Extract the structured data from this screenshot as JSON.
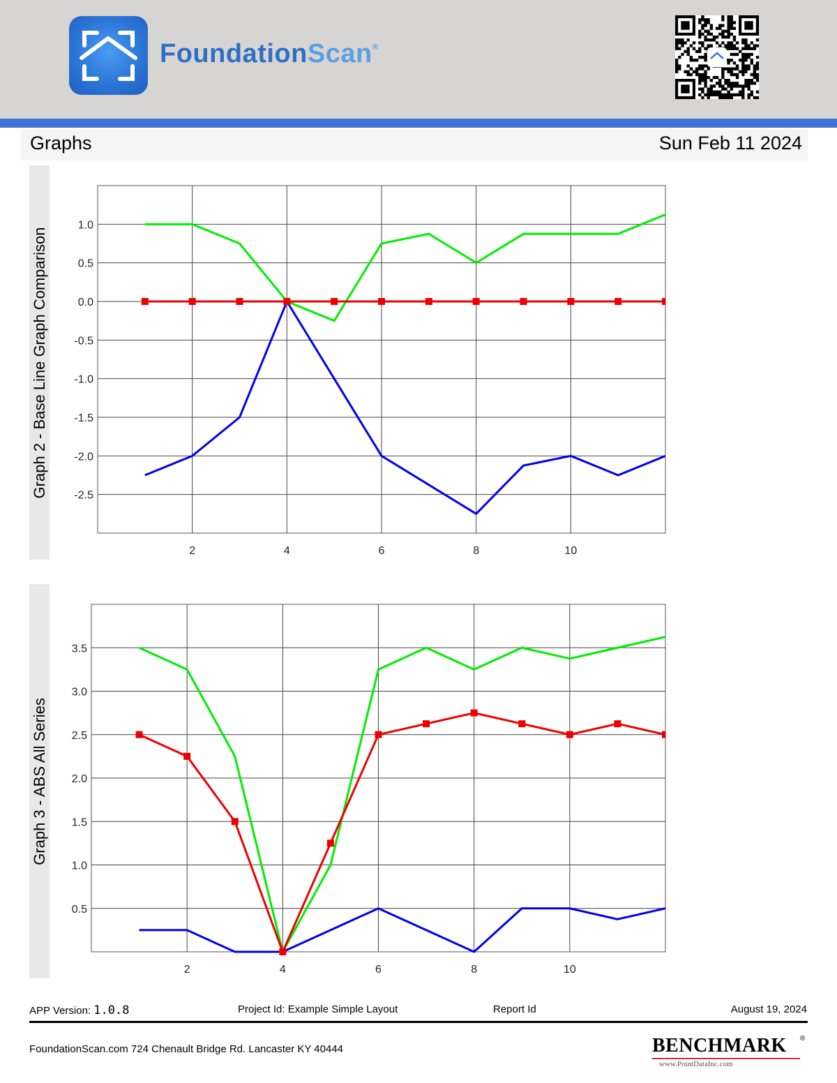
{
  "header": {
    "brand_part1": "Foundation",
    "brand_part2": "Scan",
    "brand_mark": "®"
  },
  "title_bar": {
    "title": "Graphs",
    "date": "Sun Feb 11 2024"
  },
  "colors": {
    "green": "#00ee00",
    "red": "#ee0000",
    "blue": "#0000ee",
    "accent": "#3f72d4"
  },
  "chart_data": [
    {
      "type": "line",
      "title": "Graph 2 - Base Line Graph Comparison",
      "xlabel": "",
      "ylabel": "",
      "xlim": [
        0,
        12
      ],
      "ylim": [
        -3.0,
        1.5
      ],
      "x_ticks": [
        2,
        4,
        6,
        8,
        10
      ],
      "y_ticks": [
        1.0,
        0.5,
        0.0,
        -0.5,
        -1.0,
        -1.5,
        -2.0,
        -2.5
      ],
      "y_tick_labels": [
        "1.0",
        "0.5",
        "0.0",
        "-0.5",
        "-1.0",
        "-1.5",
        "-2.0",
        "-2.5"
      ],
      "x": [
        1,
        2,
        3,
        4,
        5,
        6,
        7,
        8,
        9,
        10,
        11,
        12
      ],
      "grid": true,
      "series": [
        {
          "color": "#00ee00",
          "markers": false,
          "values": [
            1.0,
            1.0,
            0.75,
            0.0,
            -0.25,
            0.75,
            0.875,
            0.5,
            0.875,
            0.875,
            0.875,
            1.125
          ]
        },
        {
          "color": "#ee0000",
          "markers": true,
          "values": [
            0,
            0,
            0,
            0,
            0,
            0,
            0,
            0,
            0,
            0,
            0,
            0
          ]
        },
        {
          "color": "#0000ee",
          "markers": false,
          "values": [
            -2.25,
            -2.0,
            -1.5,
            0.0,
            -1.0,
            -2.0,
            -2.375,
            -2.75,
            -2.125,
            -2.0,
            -2.25,
            -2.0
          ]
        }
      ]
    },
    {
      "type": "line",
      "title": "Graph 3 - ABS All Series",
      "xlabel": "",
      "ylabel": "",
      "xlim": [
        0,
        12
      ],
      "ylim": [
        0,
        4.0
      ],
      "x_ticks": [
        2,
        4,
        6,
        8,
        10
      ],
      "y_ticks": [
        3.5,
        3.0,
        2.5,
        2.0,
        1.5,
        1.0,
        0.5
      ],
      "y_tick_labels": [
        "3.5",
        "3.0",
        "2.5",
        "2.0",
        "1.5",
        "1.0",
        "0.5"
      ],
      "x": [
        1,
        2,
        3,
        4,
        5,
        6,
        7,
        8,
        9,
        10,
        11,
        12
      ],
      "grid": true,
      "series": [
        {
          "color": "#00ee00",
          "markers": false,
          "values": [
            3.5,
            3.25,
            2.25,
            0.0,
            1.0,
            3.25,
            3.5,
            3.25,
            3.5,
            3.375,
            3.5,
            3.625
          ]
        },
        {
          "color": "#ee0000",
          "markers": true,
          "values": [
            2.5,
            2.25,
            1.5,
            0.0,
            1.25,
            2.5,
            2.625,
            2.75,
            2.625,
            2.5,
            2.625,
            2.5
          ]
        },
        {
          "color": "#0000ee",
          "markers": false,
          "values": [
            0.25,
            0.25,
            0.0,
            0.0,
            0.25,
            0.5,
            0.25,
            0.0,
            0.5,
            0.5,
            0.375,
            0.5
          ]
        }
      ]
    }
  ],
  "footer": {
    "app_version_label": "APP Version:",
    "app_version": "1.0.8",
    "project_id": "Project Id: Example Simple Layout",
    "report_id": "Report Id",
    "date": "August 19, 2024",
    "address": "FoundationScan.com 724 Chenault Bridge Rd. Lancaster KY 40444"
  },
  "benchmark": {
    "name": "BENCHMARK",
    "registered": "®",
    "url": "www.PointDataInc.com"
  }
}
